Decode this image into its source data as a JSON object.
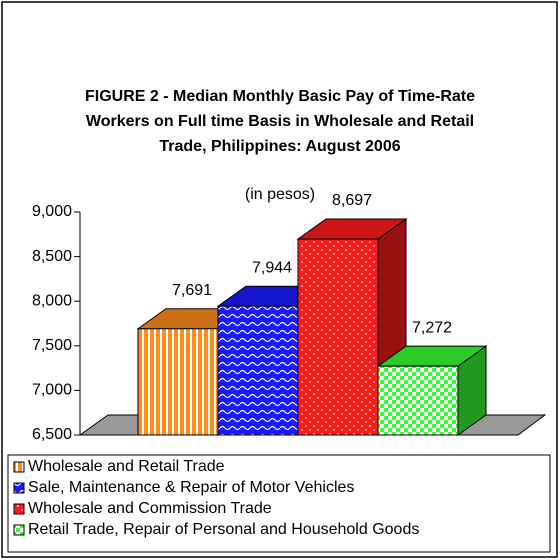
{
  "chart_data": {
    "type": "bar3d",
    "title": "FIGURE 2 - Median Monthly Basic Pay of Time-Rate Workers on Full time Basis in Wholesale and Retail Trade, Philippines: August 2006",
    "subtitle": "(in pesos)",
    "series": [
      {
        "name": "Wholesale and Retail Trade",
        "color": "#ff8c1a",
        "values": [
          7691
        ],
        "value_labels": [
          "7,691"
        ]
      },
      {
        "name": "Sale, Maintenance & Repair of Motor Vehicles",
        "color": "#1a1aff",
        "values": [
          7944
        ],
        "value_labels": [
          "7,944"
        ]
      },
      {
        "name": "Wholesale and Commission Trade",
        "color": "#ff1a1a",
        "values": [
          8697
        ],
        "value_labels": [
          "8,697"
        ]
      },
      {
        "name": "Retail Trade, Repair of Personal and Household Goods",
        "color": "#33ff33",
        "values": [
          7272
        ],
        "value_labels": [
          "7,272"
        ]
      }
    ],
    "ylim": [
      6500,
      9000
    ],
    "yticks": [
      {
        "value": 6500,
        "label": "6,500"
      },
      {
        "value": 7000,
        "label": "7,000"
      },
      {
        "value": 7500,
        "label": "7,500"
      },
      {
        "value": 8000,
        "label": "8,000"
      },
      {
        "value": 8500,
        "label": "8,500"
      },
      {
        "value": 9000,
        "label": "9,000"
      }
    ]
  }
}
